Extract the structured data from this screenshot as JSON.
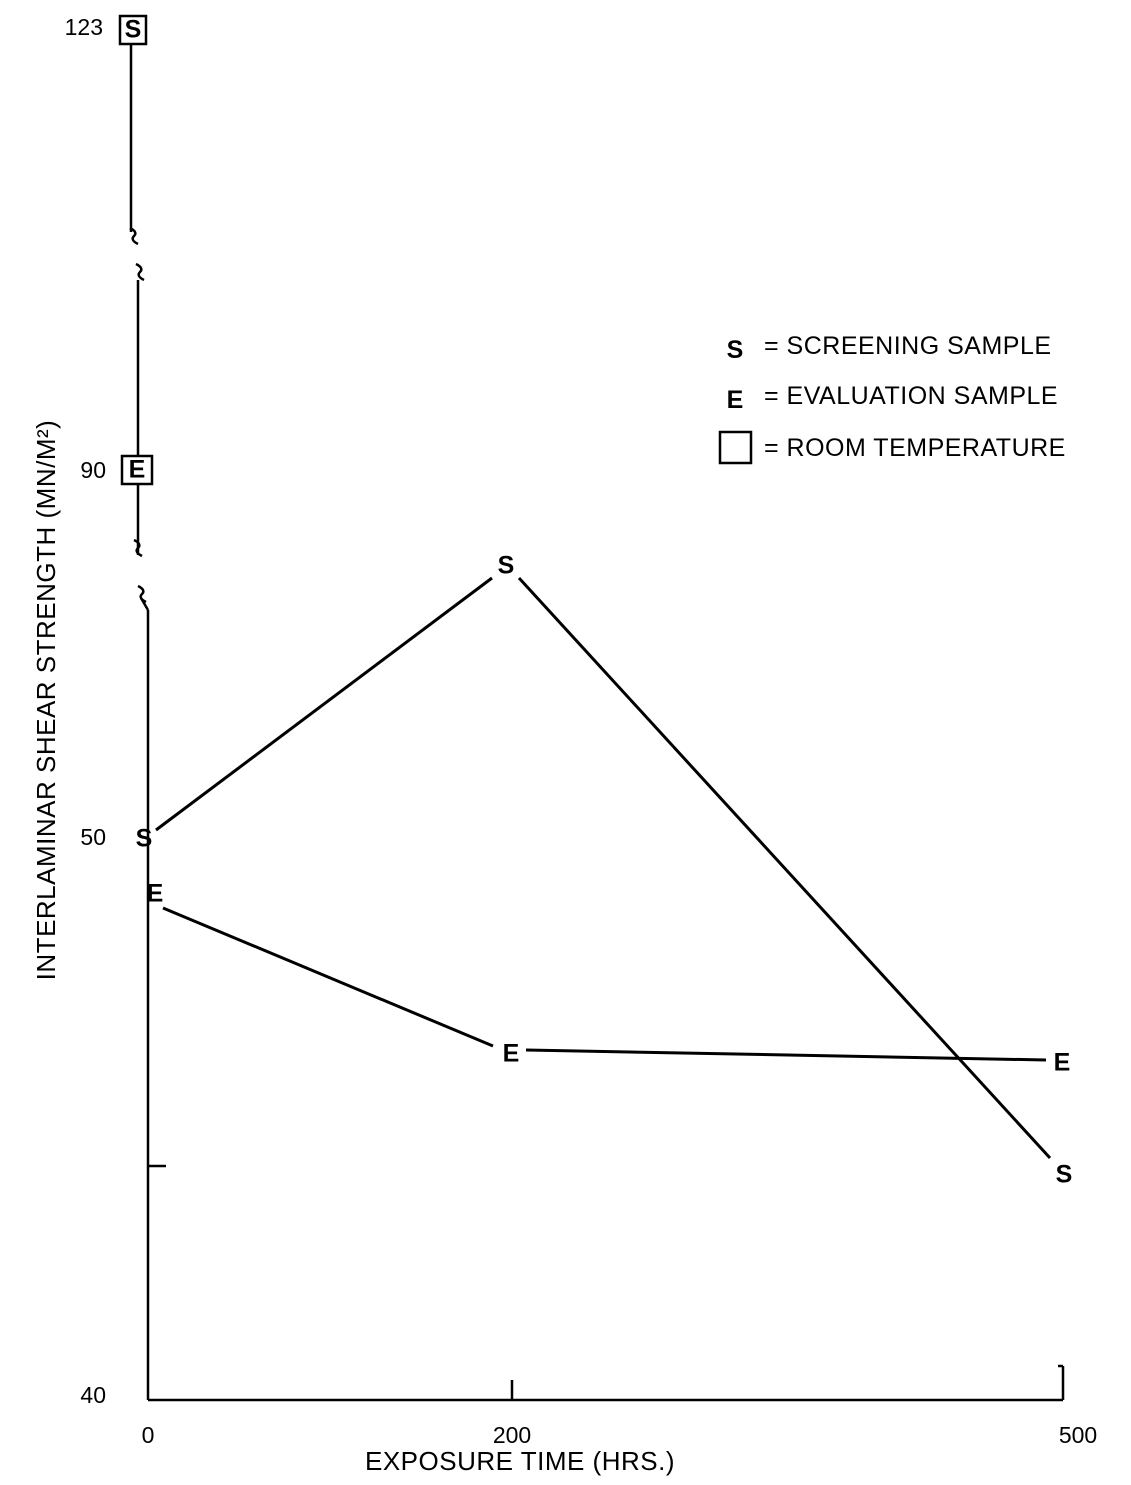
{
  "chart_data": {
    "type": "line",
    "title": "",
    "xlabel": "EXPOSURE TIME (HRS.)",
    "ylabel": "INTERLAMINAR SHEAR STRENGTH (MN/M²)",
    "x_ticks": [
      "0",
      "200",
      "500"
    ],
    "y_ticks": [
      "40",
      "50",
      "90",
      "123"
    ],
    "axis_breaks": "y axis broken (wavy marks) between 50 and 90 and between 90 and 123",
    "x_categories": [
      0,
      200,
      500
    ],
    "series": [
      {
        "name": "SCREENING SAMPLE",
        "marker": "S",
        "x": [
          0,
          200,
          500
        ],
        "y": [
          50,
          56.0,
          44.3
        ]
      },
      {
        "name": "EVALUATION SAMPLE",
        "marker": "E",
        "x": [
          0,
          200,
          500
        ],
        "y": [
          48.7,
          46.1,
          45.9
        ]
      }
    ],
    "room_temperature": [
      {
        "marker": "S",
        "x": 0,
        "y": 123
      },
      {
        "marker": "E",
        "x": 0,
        "y": 90
      }
    ],
    "legend": [
      {
        "symbol": "S",
        "label": "= SCREENING SAMPLE"
      },
      {
        "symbol": "E",
        "label": "= EVALUATION SAMPLE"
      },
      {
        "symbol": "box",
        "label": "= ROOM TEMPERATURE"
      }
    ],
    "legend_position": "top-right",
    "grid": false
  }
}
